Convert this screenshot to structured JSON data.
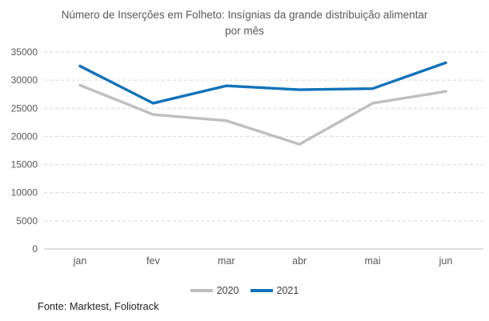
{
  "header": {
    "title_line1": "Número de Inserções em Folheto: Insígnias da grande distribuição alimentar",
    "title_line2": "por mês"
  },
  "chart_data": {
    "type": "line",
    "title": "Número de Inserções em Folheto: Insígnias da grande distribuição alimentar por mês",
    "categories": [
      "jan",
      "fev",
      "mar",
      "abr",
      "mai",
      "jun"
    ],
    "series": [
      {
        "name": "2020",
        "color": "#BFBFBF",
        "values": [
          29100,
          23900,
          22800,
          18600,
          25900,
          28000
        ]
      },
      {
        "name": "2021",
        "color": "#1172BA",
        "values": [
          32500,
          25900,
          29000,
          28300,
          28500,
          33100
        ]
      }
    ],
    "ylim": [
      0,
      35000
    ],
    "ytick_step": 5000,
    "yticks": [
      0,
      5000,
      10000,
      15000,
      20000,
      25000,
      30000,
      35000
    ],
    "xlabel": "",
    "ylabel": "",
    "grid": "horizontal-dashed",
    "legend_position": "bottom-center",
    "colors": {
      "grid": "#D9D9D9",
      "axis": "#BFBFBF",
      "tick_text": "#595959",
      "title_text": "#595959"
    }
  },
  "footer": {
    "source": "Fonte: Marktest, Foliotrack"
  }
}
